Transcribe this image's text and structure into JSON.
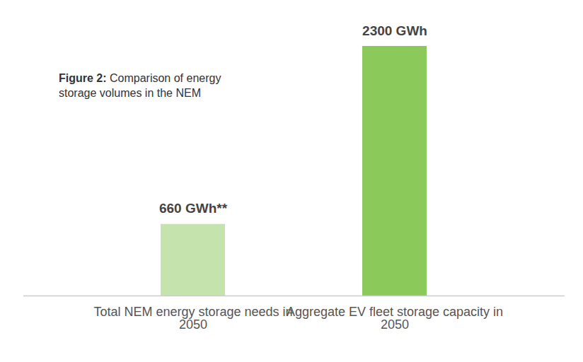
{
  "chart_data": {
    "type": "bar",
    "title": "Figure 2: Comparison of energy storage volumes in the NEM",
    "categories": [
      "Total NEM energy storage needs in 2050",
      "Aggregate EV fleet storage capacity in 2050"
    ],
    "values": [
      660,
      2300
    ],
    "value_labels": [
      "660 GWh**",
      "2300 GWh"
    ],
    "colors": [
      "#c5e3ad",
      "#8bc95a"
    ],
    "ylim": [
      0,
      2300
    ],
    "data_labels": true,
    "tick_labels": "x",
    "grid": false
  }
}
